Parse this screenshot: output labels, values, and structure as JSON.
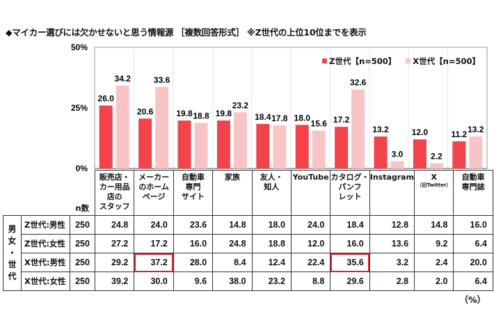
{
  "title": "◆マイカー選びには欠かせないと思う情報源 ［複数回答形式］ ※Z世代の上位10位までを表示",
  "colors": {
    "z": "#f2434b",
    "x": "#f9c4c6",
    "highlight": "#d9232d",
    "frame": "#bbbbbb"
  },
  "chart_data": {
    "type": "bar",
    "title": "マイカー選びには欠かせないと思う情報源",
    "categories": [
      "販売店・カー用品店のスタッフ",
      "メーカーのホームページ",
      "自動車専門サイト",
      "家族",
      "友人・知人",
      "YouTube",
      "カタログ・パンフレット",
      "Instagram",
      "X（旧Twitter）",
      "自動車専門誌"
    ],
    "series": [
      {
        "name": "Z世代【n=500】",
        "values": [
          26.0,
          20.6,
          19.8,
          19.8,
          18.4,
          18.0,
          17.2,
          13.2,
          12.0,
          11.2
        ]
      },
      {
        "name": "X世代【n=500】",
        "values": [
          34.2,
          33.6,
          18.8,
          23.2,
          17.8,
          15.6,
          32.6,
          3.0,
          2.2,
          13.2
        ]
      }
    ],
    "ylim": [
      0,
      50
    ],
    "yticks": [
      "0%",
      "25%",
      "50%"
    ],
    "ytick_values": [
      0,
      25,
      50
    ],
    "legend": "top-right",
    "grid": false
  },
  "legend": {
    "z": "Z世代【n=500】",
    "x": "X世代【n=500】"
  },
  "table": {
    "n_header": "n数",
    "group_label": [
      "男",
      "女",
      "・",
      "世",
      "代"
    ],
    "headers": [
      {
        "lines": [
          "販売店・",
          "カー用品",
          "店の",
          "スタッフ"
        ]
      },
      {
        "lines": [
          "メーカー",
          "のホーム",
          "ページ"
        ]
      },
      {
        "lines": [
          "自動車",
          "専門",
          "サイト"
        ]
      },
      {
        "lines": [
          "家族"
        ]
      },
      {
        "lines": [
          "友人・",
          "知人"
        ]
      },
      {
        "lines": [
          "YouTube"
        ]
      },
      {
        "lines": [
          "カタログ・",
          "パンフ",
          "レット"
        ]
      },
      {
        "lines": [
          "Instagram"
        ]
      },
      {
        "lines": [
          "X"
        ],
        "sub": "（旧Twitter）"
      },
      {
        "lines": [
          "自動車",
          "専門誌"
        ]
      }
    ],
    "rows": [
      {
        "label": "Z世代:男性",
        "n": "250",
        "values": [
          "24.8",
          "24.0",
          "23.6",
          "14.8",
          "18.0",
          "24.0",
          "18.4",
          "12.8",
          "14.8",
          "16.0"
        ],
        "highlight": []
      },
      {
        "label": "Z世代:女性",
        "n": "250",
        "values": [
          "27.2",
          "17.2",
          "16.0",
          "24.8",
          "18.8",
          "12.0",
          "16.0",
          "13.6",
          "9.2",
          "6.4"
        ],
        "highlight": []
      },
      {
        "label": "X世代:男性",
        "n": "250",
        "values": [
          "29.2",
          "37.2",
          "28.0",
          "8.4",
          "12.4",
          "22.4",
          "35.6",
          "3.2",
          "2.4",
          "20.0"
        ],
        "highlight": [
          1,
          6
        ]
      },
      {
        "label": "X世代:女性",
        "n": "250",
        "values": [
          "39.2",
          "30.0",
          "9.6",
          "38.0",
          "23.2",
          "8.8",
          "29.6",
          "2.8",
          "2.0",
          "6.4"
        ],
        "highlight": []
      }
    ],
    "unit": "（%）"
  }
}
